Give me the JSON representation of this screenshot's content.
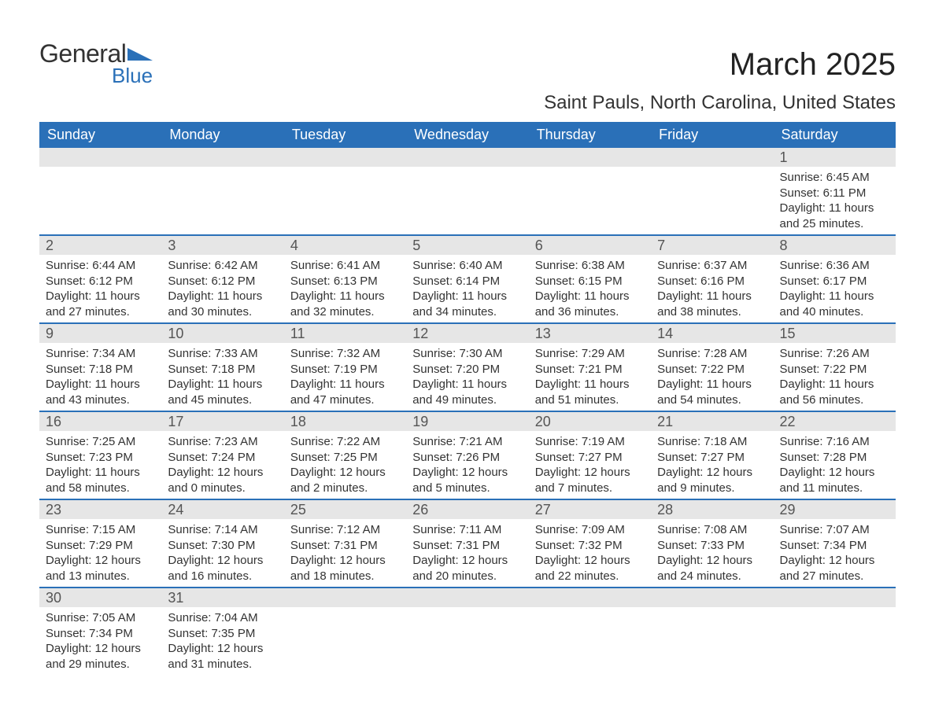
{
  "logo": {
    "text1": "General",
    "text2": "Blue",
    "color_accent": "#2a70b8",
    "color_text": "#333333"
  },
  "title": {
    "month": "March 2025",
    "location": "Saint Pauls, North Carolina, United States"
  },
  "colors": {
    "header_bg": "#2a70b8",
    "header_text": "#ffffff",
    "daynum_bg": "#e6e6e6",
    "text": "#333333",
    "row_border": "#2a70b8"
  },
  "day_headers": [
    "Sunday",
    "Monday",
    "Tuesday",
    "Wednesday",
    "Thursday",
    "Friday",
    "Saturday"
  ],
  "weeks": [
    [
      null,
      null,
      null,
      null,
      null,
      null,
      {
        "n": "1",
        "sunrise": "Sunrise: 6:45 AM",
        "sunset": "Sunset: 6:11 PM",
        "day1": "Daylight: 11 hours",
        "day2": "and 25 minutes."
      }
    ],
    [
      {
        "n": "2",
        "sunrise": "Sunrise: 6:44 AM",
        "sunset": "Sunset: 6:12 PM",
        "day1": "Daylight: 11 hours",
        "day2": "and 27 minutes."
      },
      {
        "n": "3",
        "sunrise": "Sunrise: 6:42 AM",
        "sunset": "Sunset: 6:12 PM",
        "day1": "Daylight: 11 hours",
        "day2": "and 30 minutes."
      },
      {
        "n": "4",
        "sunrise": "Sunrise: 6:41 AM",
        "sunset": "Sunset: 6:13 PM",
        "day1": "Daylight: 11 hours",
        "day2": "and 32 minutes."
      },
      {
        "n": "5",
        "sunrise": "Sunrise: 6:40 AM",
        "sunset": "Sunset: 6:14 PM",
        "day1": "Daylight: 11 hours",
        "day2": "and 34 minutes."
      },
      {
        "n": "6",
        "sunrise": "Sunrise: 6:38 AM",
        "sunset": "Sunset: 6:15 PM",
        "day1": "Daylight: 11 hours",
        "day2": "and 36 minutes."
      },
      {
        "n": "7",
        "sunrise": "Sunrise: 6:37 AM",
        "sunset": "Sunset: 6:16 PM",
        "day1": "Daylight: 11 hours",
        "day2": "and 38 minutes."
      },
      {
        "n": "8",
        "sunrise": "Sunrise: 6:36 AM",
        "sunset": "Sunset: 6:17 PM",
        "day1": "Daylight: 11 hours",
        "day2": "and 40 minutes."
      }
    ],
    [
      {
        "n": "9",
        "sunrise": "Sunrise: 7:34 AM",
        "sunset": "Sunset: 7:18 PM",
        "day1": "Daylight: 11 hours",
        "day2": "and 43 minutes."
      },
      {
        "n": "10",
        "sunrise": "Sunrise: 7:33 AM",
        "sunset": "Sunset: 7:18 PM",
        "day1": "Daylight: 11 hours",
        "day2": "and 45 minutes."
      },
      {
        "n": "11",
        "sunrise": "Sunrise: 7:32 AM",
        "sunset": "Sunset: 7:19 PM",
        "day1": "Daylight: 11 hours",
        "day2": "and 47 minutes."
      },
      {
        "n": "12",
        "sunrise": "Sunrise: 7:30 AM",
        "sunset": "Sunset: 7:20 PM",
        "day1": "Daylight: 11 hours",
        "day2": "and 49 minutes."
      },
      {
        "n": "13",
        "sunrise": "Sunrise: 7:29 AM",
        "sunset": "Sunset: 7:21 PM",
        "day1": "Daylight: 11 hours",
        "day2": "and 51 minutes."
      },
      {
        "n": "14",
        "sunrise": "Sunrise: 7:28 AM",
        "sunset": "Sunset: 7:22 PM",
        "day1": "Daylight: 11 hours",
        "day2": "and 54 minutes."
      },
      {
        "n": "15",
        "sunrise": "Sunrise: 7:26 AM",
        "sunset": "Sunset: 7:22 PM",
        "day1": "Daylight: 11 hours",
        "day2": "and 56 minutes."
      }
    ],
    [
      {
        "n": "16",
        "sunrise": "Sunrise: 7:25 AM",
        "sunset": "Sunset: 7:23 PM",
        "day1": "Daylight: 11 hours",
        "day2": "and 58 minutes."
      },
      {
        "n": "17",
        "sunrise": "Sunrise: 7:23 AM",
        "sunset": "Sunset: 7:24 PM",
        "day1": "Daylight: 12 hours",
        "day2": "and 0 minutes."
      },
      {
        "n": "18",
        "sunrise": "Sunrise: 7:22 AM",
        "sunset": "Sunset: 7:25 PM",
        "day1": "Daylight: 12 hours",
        "day2": "and 2 minutes."
      },
      {
        "n": "19",
        "sunrise": "Sunrise: 7:21 AM",
        "sunset": "Sunset: 7:26 PM",
        "day1": "Daylight: 12 hours",
        "day2": "and 5 minutes."
      },
      {
        "n": "20",
        "sunrise": "Sunrise: 7:19 AM",
        "sunset": "Sunset: 7:27 PM",
        "day1": "Daylight: 12 hours",
        "day2": "and 7 minutes."
      },
      {
        "n": "21",
        "sunrise": "Sunrise: 7:18 AM",
        "sunset": "Sunset: 7:27 PM",
        "day1": "Daylight: 12 hours",
        "day2": "and 9 minutes."
      },
      {
        "n": "22",
        "sunrise": "Sunrise: 7:16 AM",
        "sunset": "Sunset: 7:28 PM",
        "day1": "Daylight: 12 hours",
        "day2": "and 11 minutes."
      }
    ],
    [
      {
        "n": "23",
        "sunrise": "Sunrise: 7:15 AM",
        "sunset": "Sunset: 7:29 PM",
        "day1": "Daylight: 12 hours",
        "day2": "and 13 minutes."
      },
      {
        "n": "24",
        "sunrise": "Sunrise: 7:14 AM",
        "sunset": "Sunset: 7:30 PM",
        "day1": "Daylight: 12 hours",
        "day2": "and 16 minutes."
      },
      {
        "n": "25",
        "sunrise": "Sunrise: 7:12 AM",
        "sunset": "Sunset: 7:31 PM",
        "day1": "Daylight: 12 hours",
        "day2": "and 18 minutes."
      },
      {
        "n": "26",
        "sunrise": "Sunrise: 7:11 AM",
        "sunset": "Sunset: 7:31 PM",
        "day1": "Daylight: 12 hours",
        "day2": "and 20 minutes."
      },
      {
        "n": "27",
        "sunrise": "Sunrise: 7:09 AM",
        "sunset": "Sunset: 7:32 PM",
        "day1": "Daylight: 12 hours",
        "day2": "and 22 minutes."
      },
      {
        "n": "28",
        "sunrise": "Sunrise: 7:08 AM",
        "sunset": "Sunset: 7:33 PM",
        "day1": "Daylight: 12 hours",
        "day2": "and 24 minutes."
      },
      {
        "n": "29",
        "sunrise": "Sunrise: 7:07 AM",
        "sunset": "Sunset: 7:34 PM",
        "day1": "Daylight: 12 hours",
        "day2": "and 27 minutes."
      }
    ],
    [
      {
        "n": "30",
        "sunrise": "Sunrise: 7:05 AM",
        "sunset": "Sunset: 7:34 PM",
        "day1": "Daylight: 12 hours",
        "day2": "and 29 minutes."
      },
      {
        "n": "31",
        "sunrise": "Sunrise: 7:04 AM",
        "sunset": "Sunset: 7:35 PM",
        "day1": "Daylight: 12 hours",
        "day2": "and 31 minutes."
      },
      null,
      null,
      null,
      null,
      null
    ]
  ]
}
